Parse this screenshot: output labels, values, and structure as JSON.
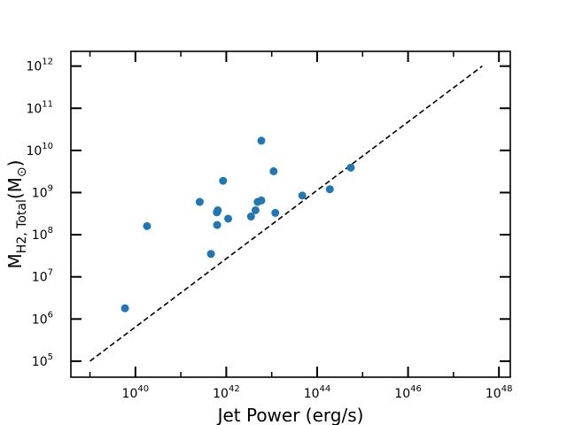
{
  "chart_data": {
    "type": "scatter",
    "title": "",
    "xlabel": "Jet Power (erg/s)",
    "ylabel": {
      "main": "M",
      "sub": "H2, Total",
      "open": "(M",
      "sun_sub": "⊙",
      "close": ")"
    },
    "xscale": "log",
    "yscale": "log",
    "xlim_log10": [
      38.58,
      48.25
    ],
    "ylim_log10": [
      4.62,
      12.35
    ],
    "x_ticks": [
      {
        "base": "10",
        "exp": "40",
        "log10": 40
      },
      {
        "base": "10",
        "exp": "42",
        "log10": 42
      },
      {
        "base": "10",
        "exp": "44",
        "log10": 44
      },
      {
        "base": "10",
        "exp": "46",
        "log10": 46
      },
      {
        "base": "10",
        "exp": "48",
        "log10": 48
      }
    ],
    "y_ticks": [
      {
        "base": "10",
        "exp": "5",
        "log10": 5
      },
      {
        "base": "10",
        "exp": "6",
        "log10": 6
      },
      {
        "base": "10",
        "exp": "7",
        "log10": 7
      },
      {
        "base": "10",
        "exp": "8",
        "log10": 8
      },
      {
        "base": "10",
        "exp": "9",
        "log10": 9
      },
      {
        "base": "10",
        "exp": "10",
        "log10": 10
      },
      {
        "base": "10",
        "exp": "11",
        "log10": 11
      },
      {
        "base": "10",
        "exp": "12",
        "log10": 12
      }
    ],
    "grid": false,
    "series": [
      {
        "type": "scatter",
        "color": "#1f77b4",
        "points": [
          {
            "x": "5.9e39",
            "y": "1.8e6"
          },
          {
            "x": "1.8e40",
            "y": "1.6e8"
          },
          {
            "x": "2.6e41",
            "y": "6.0e8"
          },
          {
            "x": "4.6e41",
            "y": "3.5e7"
          },
          {
            "x": "6.3e41",
            "y": "1.7e8"
          },
          {
            "x": "6.2e41",
            "y": "3.4e8"
          },
          {
            "x": "6.5e41",
            "y": "3.8e8"
          },
          {
            "x": "8.5e41",
            "y": "1.9e9"
          },
          {
            "x": "1.1e42",
            "y": "2.4e8"
          },
          {
            "x": "3.5e42",
            "y": "2.7e8"
          },
          {
            "x": "4.4e42",
            "y": "3.8e8"
          },
          {
            "x": "4.9e42",
            "y": "6.0e8"
          },
          {
            "x": "5.9e42",
            "y": "6.5e8"
          },
          {
            "x": "5.9e42",
            "y": "1.7e10"
          },
          {
            "x": "1.1e43",
            "y": "3.2e9"
          },
          {
            "x": "1.2e43",
            "y": "3.3e8"
          },
          {
            "x": "4.7e43",
            "y": "8.5e8"
          },
          {
            "x": "1.9e44",
            "y": "1.2e9"
          },
          {
            "x": "5.5e44",
            "y": "3.9e9"
          }
        ]
      },
      {
        "type": "line",
        "style": "dashed",
        "color": "#000000",
        "points": [
          {
            "x": "1e39",
            "y": "1e5"
          },
          {
            "x": "4.3e47",
            "y": "1e12"
          }
        ]
      }
    ]
  }
}
